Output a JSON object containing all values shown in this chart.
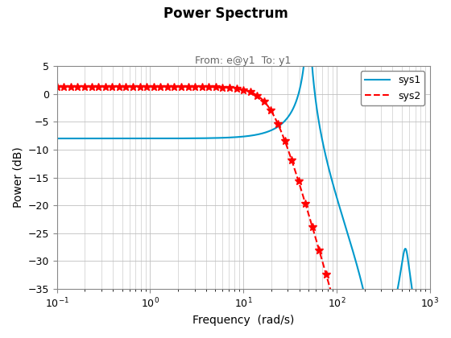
{
  "title": "Power Spectrum",
  "subtitle": "From: e@y1  To: y1",
  "xlabel": "Frequency  (rad/s)",
  "ylabel": "Power (dB)",
  "xlim": [
    0.1,
    1000
  ],
  "ylim": [
    -35,
    5
  ],
  "sys1_color": "#0099CC",
  "sys2_color": "#FF0000",
  "sys1_label": "sys1",
  "sys2_label": "sys2",
  "background_color": "#FFFFFF",
  "grid_color": "#C0C0C0",
  "yticks": [
    5,
    0,
    -5,
    -10,
    -15,
    -20,
    -25,
    -30,
    -35
  ],
  "n_markers": 55
}
